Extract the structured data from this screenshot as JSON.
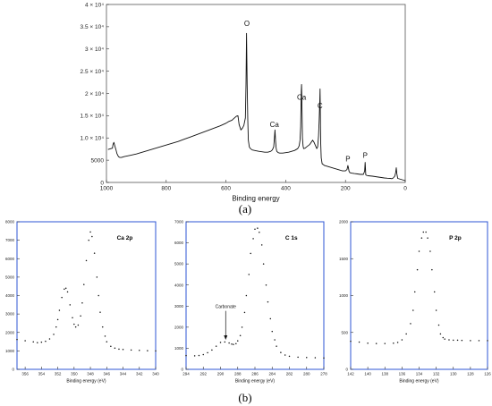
{
  "captions": {
    "a": "(a)",
    "b": "(b)"
  },
  "chart_data": [
    {
      "type": "line",
      "panel": "(a)",
      "title": "",
      "xlabel": "Binding energy",
      "ylabel": "",
      "xlim": [
        1000,
        0
      ],
      "ylim": [
        0,
        40000
      ],
      "x_reversed": true,
      "grid": false,
      "box_color": "#555555",
      "xticks": [
        1000,
        800,
        600,
        400,
        200,
        0
      ],
      "yticks": [
        {
          "v": 0,
          "label": "0"
        },
        {
          "v": 5000,
          "label": "5000"
        },
        {
          "v": 10000,
          "label": "1.0 × 10⁴"
        },
        {
          "v": 15000,
          "label": "1.5 × 10⁴"
        },
        {
          "v": 20000,
          "label": "2 × 10⁴"
        },
        {
          "v": 25000,
          "label": "2.5 × 10⁴"
        },
        {
          "v": 30000,
          "label": "3 × 10⁴"
        },
        {
          "v": 35000,
          "label": "3.5 × 10⁴"
        },
        {
          "v": 40000,
          "label": "4 × 10⁴"
        }
      ],
      "series": [
        {
          "x": [
            995,
            990,
            985,
            980,
            978,
            975,
            972,
            968,
            965,
            960,
            955,
            950,
            940,
            920,
            900,
            880,
            860,
            840,
            820,
            800,
            780,
            760,
            740,
            720,
            700,
            680,
            660,
            640,
            620,
            600,
            590,
            580,
            575,
            570,
            565,
            560,
            556,
            550,
            545,
            540,
            535,
            533,
            531,
            529,
            527,
            525,
            522,
            518,
            512,
            505,
            498,
            490,
            480,
            470,
            460,
            450,
            445,
            440,
            438,
            436,
            434,
            432,
            430,
            425,
            420,
            410,
            400,
            390,
            380,
            370,
            360,
            355,
            352,
            350,
            348,
            347,
            346,
            345,
            344,
            342,
            340,
            335,
            330,
            320,
            315,
            310,
            305,
            300,
            296,
            293,
            290,
            288,
            286,
            285,
            284,
            283,
            281,
            278,
            270,
            260,
            250,
            240,
            230,
            220,
            210,
            200,
            195,
            192,
            190,
            188,
            185,
            180,
            170,
            160,
            150,
            140,
            136,
            134,
            133,
            132,
            130,
            125,
            110,
            100,
            90,
            80,
            70,
            60,
            50,
            45,
            40,
            35,
            32,
            30,
            28,
            25,
            20,
            15,
            10,
            5,
            0
          ],
          "y": [
            7400,
            7500,
            7600,
            7700,
            8500,
            9000,
            8200,
            7300,
            6500,
            5800,
            5600,
            5600,
            5800,
            6100,
            6400,
            6800,
            7200,
            7600,
            8000,
            8400,
            8800,
            9200,
            9700,
            10200,
            10700,
            11200,
            11700,
            12200,
            12700,
            13300,
            13700,
            14000,
            14300,
            14600,
            14900,
            15000,
            13000,
            11800,
            12200,
            12800,
            14500,
            22000,
            33500,
            22000,
            14000,
            9500,
            8000,
            7600,
            7300,
            7200,
            7100,
            7000,
            6900,
            6800,
            6800,
            7000,
            7300,
            8000,
            9800,
            11800,
            9500,
            7700,
            7000,
            6700,
            6600,
            6600,
            6700,
            6800,
            7000,
            7200,
            7600,
            8200,
            9500,
            12500,
            20500,
            22000,
            19000,
            14000,
            10000,
            8200,
            7600,
            7700,
            8000,
            8500,
            9000,
            9500,
            9000,
            8200,
            7600,
            8000,
            10500,
            14000,
            18500,
            21000,
            15500,
            9000,
            5500,
            4200,
            3800,
            3600,
            3400,
            3200,
            3000,
            2800,
            2600,
            2600,
            2900,
            3800,
            3300,
            2500,
            2200,
            2100,
            2000,
            1900,
            1800,
            1800,
            2500,
            4500,
            3000,
            1700,
            1600,
            1500,
            1400,
            1300,
            1200,
            1100,
            1000,
            950,
            900,
            850,
            1000,
            1400,
            2200,
            3300,
            2000,
            900,
            800,
            700,
            600,
            500,
            400
          ]
        }
      ],
      "annotations": [
        {
          "text": "O",
          "x": 530,
          "y": 35200
        },
        {
          "text": "Ca",
          "x": 438,
          "y": 12500
        },
        {
          "text": "Ca",
          "x": 347,
          "y": 18600
        },
        {
          "text": "C",
          "x": 285,
          "y": 16700
        },
        {
          "text": "P",
          "x": 192,
          "y": 4700
        },
        {
          "text": "P",
          "x": 134,
          "y": 5500
        }
      ]
    },
    {
      "type": "scatter",
      "panel": "(b)",
      "title": "",
      "label": "Ca 2p",
      "xlabel": "Binding energy (eV)",
      "ylabel": "",
      "xlim": [
        357,
        340
      ],
      "ylim": [
        0,
        8000
      ],
      "x_reversed": true,
      "grid": false,
      "box_color": "#2c54d6",
      "xticks": [
        356,
        354,
        352,
        350,
        348,
        346,
        344,
        342,
        340
      ],
      "yticks": [
        0,
        1000,
        2000,
        3000,
        4000,
        5000,
        6000,
        7000,
        8000
      ],
      "series": [
        {
          "x": [
            357,
            356,
            355,
            354.5,
            354,
            353.5,
            353,
            352.5,
            352.2,
            352,
            351.8,
            351.5,
            351.2,
            351,
            350.8,
            350.5,
            350.2,
            350,
            349.8,
            349.5,
            349.2,
            349,
            348.8,
            348.5,
            348.2,
            348,
            347.8,
            347.5,
            347.2,
            347,
            346.8,
            346.5,
            346.2,
            346,
            345.5,
            345,
            344.5,
            344,
            343,
            342,
            341,
            340
          ],
          "y": [
            1620,
            1550,
            1490,
            1450,
            1470,
            1520,
            1650,
            1900,
            2300,
            2700,
            3200,
            3900,
            4350,
            4400,
            4200,
            3500,
            2800,
            2450,
            2300,
            2400,
            2900,
            3600,
            4600,
            5900,
            7000,
            7450,
            7200,
            6300,
            5000,
            4000,
            3100,
            2300,
            1800,
            1500,
            1250,
            1150,
            1100,
            1080,
            1050,
            1030,
            1010,
            1000
          ]
        }
      ]
    },
    {
      "type": "scatter",
      "panel": "(b)",
      "title": "",
      "label": "C 1s",
      "xlabel": "Binding energy (eV)",
      "ylabel": "",
      "xlim": [
        294,
        278
      ],
      "ylim": [
        0,
        7000
      ],
      "x_reversed": true,
      "grid": false,
      "box_color": "#2c54d6",
      "xticks": [
        294,
        292,
        290,
        288,
        286,
        284,
        282,
        280,
        278
      ],
      "yticks": [
        0,
        1000,
        2000,
        3000,
        4000,
        5000,
        6000,
        7000
      ],
      "series": [
        {
          "x": [
            294,
            293,
            292.5,
            292,
            291.5,
            291,
            290.5,
            290,
            289.5,
            289,
            288.7,
            288.5,
            288.2,
            288,
            287.7,
            287.5,
            287.2,
            287,
            286.7,
            286.5,
            286.2,
            286,
            285.7,
            285.5,
            285.2,
            285,
            284.7,
            284.5,
            284.2,
            284,
            283.7,
            283.5,
            283,
            282.5,
            282,
            281,
            280,
            279,
            278
          ],
          "y": [
            650,
            640,
            660,
            700,
            790,
            920,
            1100,
            1280,
            1300,
            1250,
            1200,
            1180,
            1220,
            1350,
            1600,
            2000,
            2700,
            3500,
            4500,
            5500,
            6200,
            6650,
            6700,
            6500,
            5900,
            5000,
            4000,
            3200,
            2400,
            1800,
            1400,
            1100,
            800,
            680,
            620,
            580,
            560,
            550,
            540
          ]
        }
      ],
      "annotations": [
        {
          "text": "Carbonate",
          "x": 289.4,
          "y": 2900,
          "arrow_to_y": 1400
        }
      ]
    },
    {
      "type": "scatter",
      "panel": "(b)",
      "title": "",
      "label": "P 2p",
      "xlabel": "Binding energy (eV)",
      "ylabel": "",
      "xlim": [
        142,
        126
      ],
      "ylim": [
        0,
        2000
      ],
      "x_reversed": true,
      "grid": false,
      "box_color": "#2c54d6",
      "xticks": [
        142,
        140,
        138,
        136,
        134,
        132,
        130,
        128,
        126
      ],
      "yticks": [
        0,
        500,
        1000,
        1500,
        2000
      ],
      "series": [
        {
          "x": [
            142,
            141,
            140,
            139,
            138,
            137,
            136.5,
            136,
            135.5,
            135,
            134.7,
            134.5,
            134.2,
            134,
            133.7,
            133.5,
            133.2,
            133,
            132.7,
            132.5,
            132.2,
            132,
            131.7,
            131.5,
            131.2,
            131,
            130.5,
            130,
            129.5,
            129,
            128,
            127,
            126
          ],
          "y": [
            380,
            370,
            355,
            350,
            350,
            355,
            365,
            400,
            480,
            620,
            800,
            1050,
            1350,
            1600,
            1780,
            1860,
            1860,
            1780,
            1600,
            1350,
            1050,
            800,
            600,
            480,
            430,
            410,
            400,
            395,
            395,
            392,
            390,
            390,
            390
          ]
        }
      ]
    }
  ]
}
